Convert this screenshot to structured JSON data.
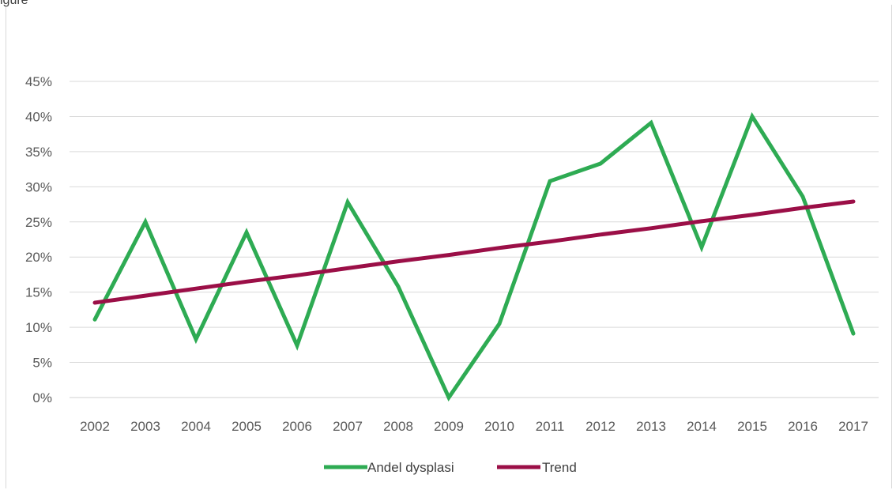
{
  "figure": {
    "corner_text": "igure"
  },
  "chart_data": {
    "type": "line",
    "title": "",
    "xlabel": "",
    "ylabel": "",
    "x": [
      "2002",
      "2003",
      "2004",
      "2005",
      "2006",
      "2007",
      "2008",
      "2009",
      "2010",
      "2011",
      "2012",
      "2013",
      "2014",
      "2015",
      "2016",
      "2017"
    ],
    "ylim": [
      0,
      45
    ],
    "yticks": [
      "0%",
      "5%",
      "10%",
      "15%",
      "20%",
      "25%",
      "30%",
      "35%",
      "40%",
      "45%"
    ],
    "series": [
      {
        "name": "Andel dysplasi",
        "color": "#2eab53",
        "values": [
          11.1,
          25.0,
          8.3,
          23.5,
          7.4,
          27.8,
          15.8,
          0.0,
          10.5,
          30.8,
          33.3,
          39.1,
          21.4,
          40.0,
          28.6,
          9.1
        ]
      },
      {
        "name": "Trend",
        "color": "#9b0f47",
        "values": [
          13.5,
          14.5,
          15.5,
          16.5,
          17.4,
          18.4,
          19.4,
          20.3,
          21.3,
          22.2,
          23.2,
          24.1,
          25.1,
          26.0,
          27.0,
          27.9
        ]
      }
    ],
    "grid": true,
    "legend_position": "bottom"
  }
}
